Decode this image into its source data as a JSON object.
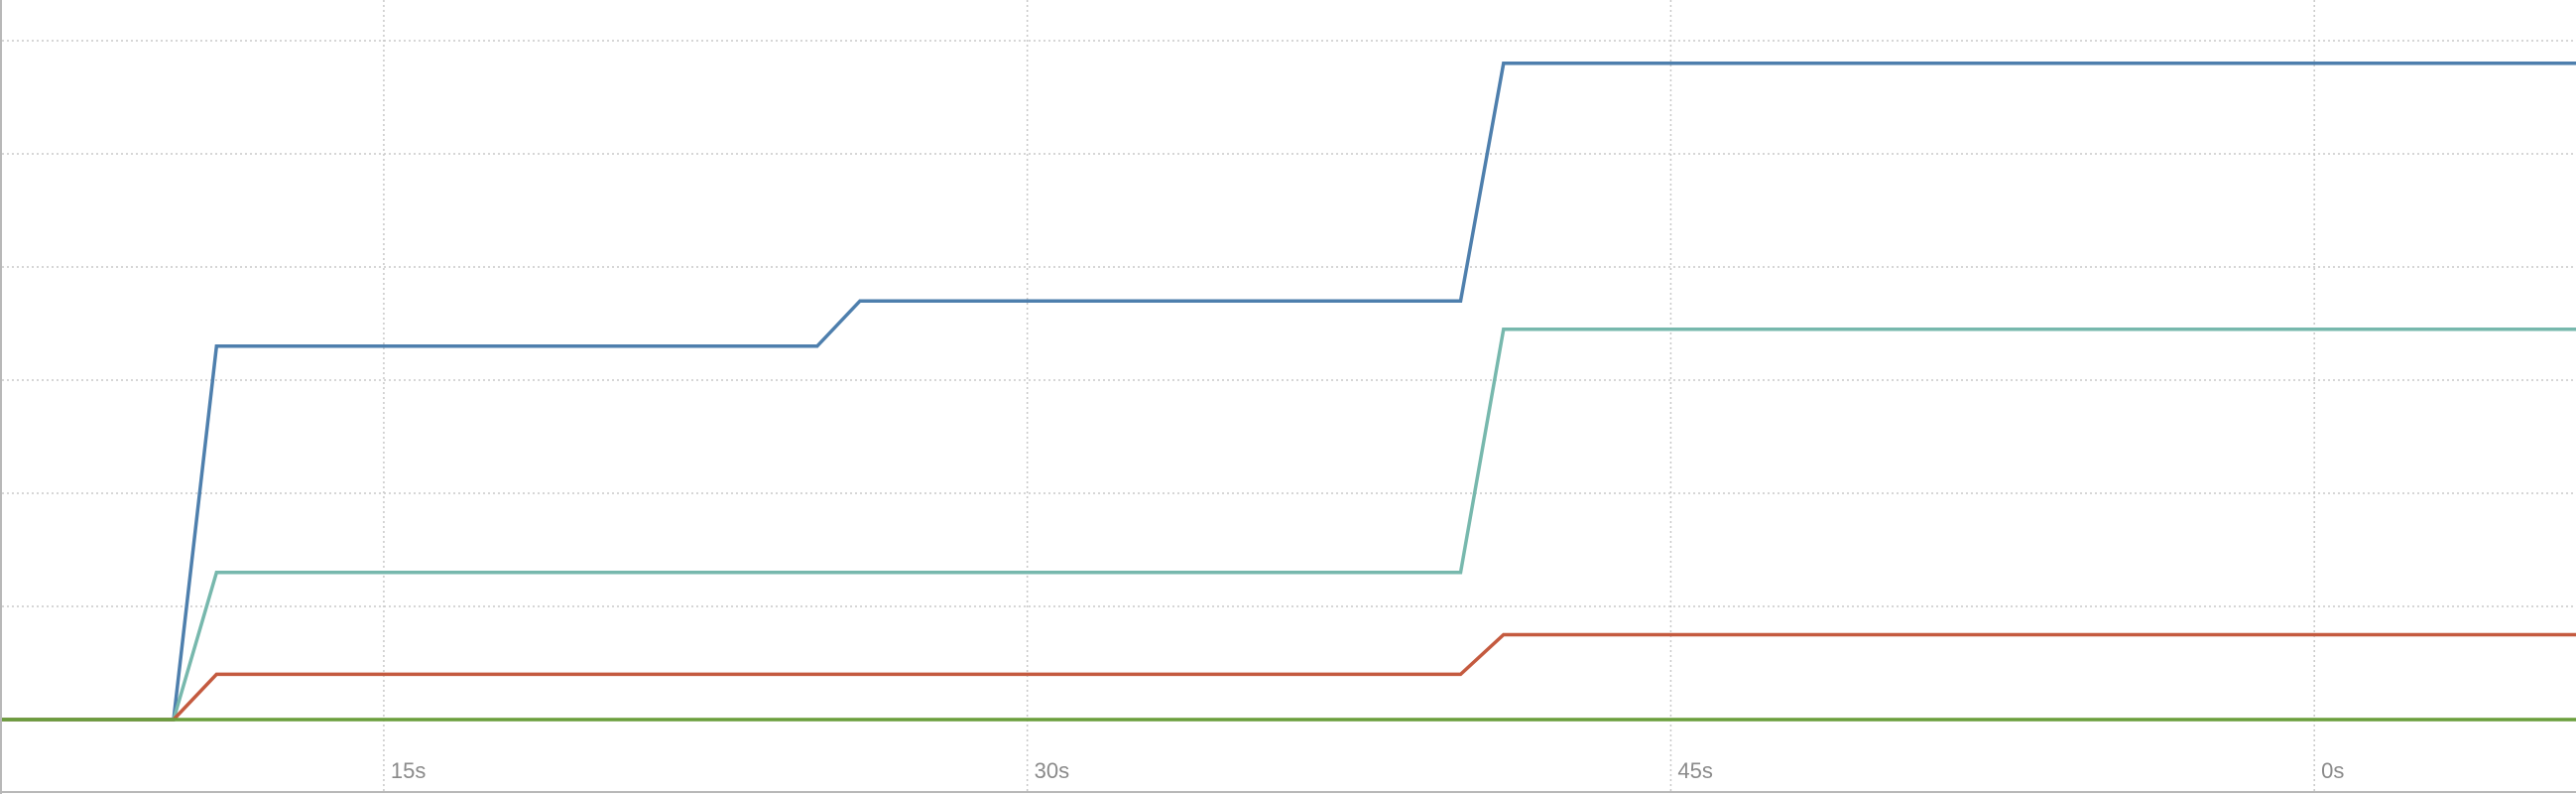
{
  "chart_data": {
    "type": "line",
    "title": "",
    "xlabel": "",
    "ylabel": "",
    "x_ticks": [
      {
        "label": "15s",
        "x": 15
      },
      {
        "label": "30s",
        "x": 30
      },
      {
        "label": "45s",
        "x": 45
      },
      {
        "label": "0s",
        "x": 60
      }
    ],
    "xlim": [
      6.1,
      66.1
    ],
    "ylim": [
      0,
      7
    ],
    "y_gridlines": [
      0,
      1,
      2,
      3,
      4,
      5,
      6,
      7
    ],
    "grid": true,
    "legend": "none",
    "series": [
      {
        "color": "#4e7fad",
        "points": [
          [
            6.1,
            0
          ],
          [
            10.1,
            0
          ],
          [
            11.1,
            3.3
          ],
          [
            25.1,
            3.3
          ],
          [
            26.1,
            3.7
          ],
          [
            40.1,
            3.7
          ],
          [
            41.1,
            5.8
          ],
          [
            66.1,
            5.8
          ]
        ]
      },
      {
        "color": "#77b8ad",
        "points": [
          [
            6.1,
            0
          ],
          [
            10.1,
            0
          ],
          [
            11.1,
            1.3
          ],
          [
            40.1,
            1.3
          ],
          [
            41.1,
            3.45
          ],
          [
            66.1,
            3.45
          ]
        ]
      },
      {
        "color": "#c45a3f",
        "points": [
          [
            6.1,
            0
          ],
          [
            10.1,
            0
          ],
          [
            11.1,
            0.4
          ],
          [
            40.1,
            0.4
          ],
          [
            41.1,
            0.75
          ],
          [
            66.1,
            0.75
          ]
        ]
      },
      {
        "color": "#6a9e3c",
        "points": [
          [
            6.1,
            0
          ],
          [
            66.1,
            0
          ]
        ]
      }
    ]
  }
}
